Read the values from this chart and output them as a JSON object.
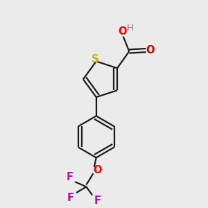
{
  "bg_color": "#ebebeb",
  "bond_color": "#1a1a1a",
  "sulfur_color": "#c8b400",
  "oxygen_color": "#ff0000",
  "oxygen_color_oh": "#cc0000",
  "hydrogen_color": "#808080",
  "fluorine_color": "#cc00cc",
  "line_width": 1.6,
  "font_size": 10.5,
  "xlim": [
    0,
    10
  ],
  "ylim": [
    0,
    10
  ]
}
